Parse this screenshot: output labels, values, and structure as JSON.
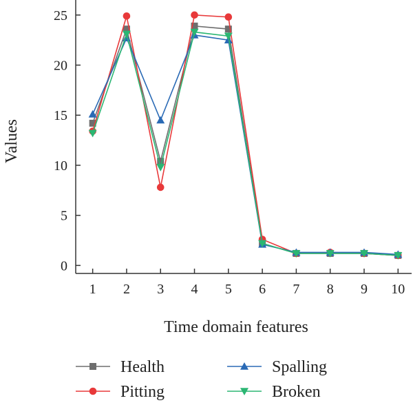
{
  "chart_data": {
    "type": "line",
    "xlabel": "Time domain features",
    "ylabel": "Values",
    "x": [
      1,
      2,
      3,
      4,
      5,
      6,
      7,
      8,
      9,
      10
    ],
    "xticks": [
      "1",
      "2",
      "3",
      "4",
      "5",
      "6",
      "7",
      "8",
      "9",
      "10"
    ],
    "yticks": [
      "0",
      "5",
      "10",
      "15",
      "20",
      "25"
    ],
    "ylim": [
      -0.8,
      26.5
    ],
    "xlim": [
      0.5,
      10.4
    ],
    "grid": false,
    "legend_position": "bottom",
    "series": [
      {
        "name": "Health",
        "color": "#6e6e6e",
        "marker": "square",
        "values": [
          14.2,
          23.6,
          10.4,
          23.9,
          23.6,
          2.2,
          1.2,
          1.2,
          1.2,
          1.0
        ]
      },
      {
        "name": "Pitting",
        "color": "#e8393a",
        "marker": "circle",
        "values": [
          13.4,
          24.9,
          7.8,
          25.0,
          24.8,
          2.6,
          1.2,
          1.3,
          1.2,
          1.0
        ]
      },
      {
        "name": "Spalling",
        "color": "#2a6ab5",
        "marker": "triangle-up",
        "values": [
          15.1,
          22.7,
          14.5,
          23.0,
          22.5,
          2.1,
          1.3,
          1.3,
          1.3,
          1.1
        ]
      },
      {
        "name": "Broken",
        "color": "#2bb673",
        "marker": "triangle-down",
        "values": [
          13.2,
          23.1,
          9.8,
          23.3,
          22.9,
          2.2,
          1.2,
          1.2,
          1.2,
          1.0
        ]
      }
    ]
  }
}
